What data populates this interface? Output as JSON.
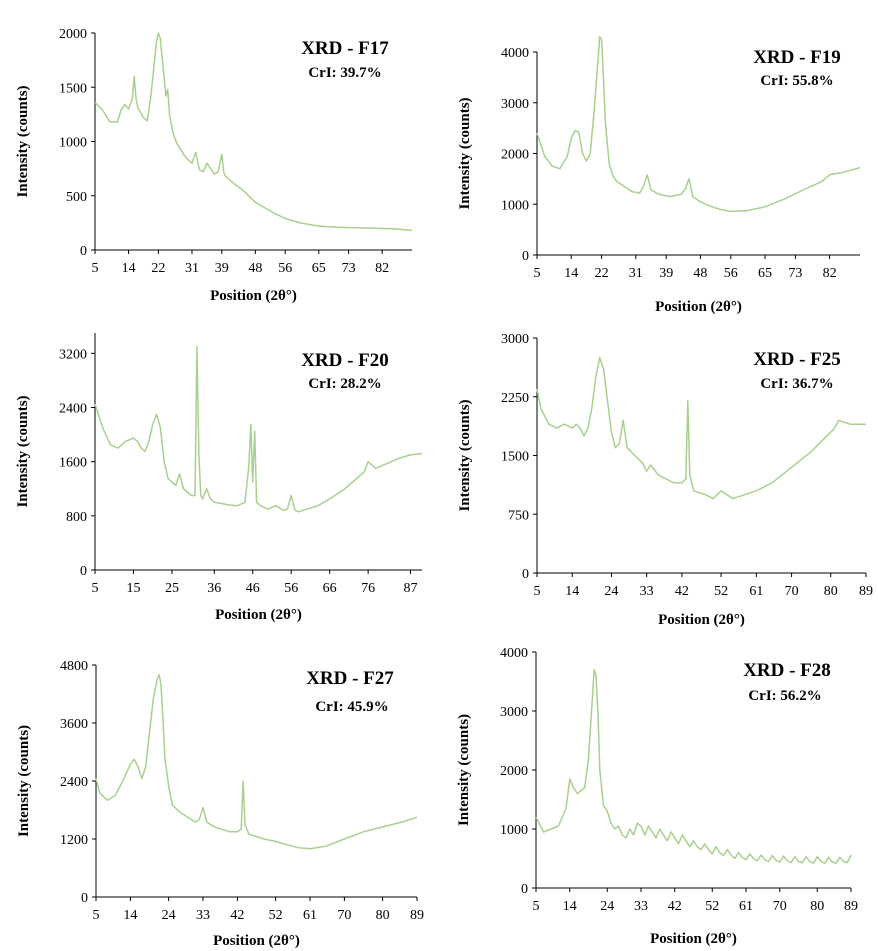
{
  "colors": {
    "series": "#a9d08e",
    "axis": "#000000"
  },
  "chart_data": [
    {
      "type": "line",
      "title": "XRD - F17",
      "subtitle": "CrI: 39.7%",
      "xlabel": "Position (2θ°)",
      "ylabel": "Intensity (counts)",
      "xlim": [
        5,
        90
      ],
      "ylim": [
        0,
        2000
      ],
      "x_ticks": [
        "5",
        "14",
        "22",
        "31",
        "39",
        "48",
        "56",
        "65",
        "73",
        "82"
      ],
      "y_ticks": [
        "0",
        "500",
        "1000",
        "1500",
        "2000"
      ],
      "grid": false,
      "series": [
        {
          "x": [
            5,
            7,
            9,
            11,
            12,
            13,
            14,
            15,
            15.5,
            16,
            16.5,
            17,
            18,
            19,
            20,
            21,
            21.5,
            22,
            22.5,
            23,
            23.5,
            24,
            24.5,
            25,
            26,
            27,
            29,
            30,
            31,
            32,
            33,
            34,
            35,
            36,
            37,
            38,
            39,
            39.5,
            40,
            42,
            45,
            48,
            50,
            53,
            56,
            60,
            65,
            70,
            75,
            80,
            85,
            90
          ],
          "y": [
            1360,
            1290,
            1180,
            1180,
            1290,
            1340,
            1300,
            1390,
            1600,
            1400,
            1310,
            1280,
            1220,
            1190,
            1420,
            1760,
            1920,
            2000,
            1950,
            1780,
            1600,
            1420,
            1480,
            1240,
            1070,
            980,
            870,
            830,
            800,
            900,
            740,
            720,
            800,
            750,
            700,
            720,
            880,
            720,
            680,
            620,
            540,
            440,
            400,
            340,
            290,
            250,
            220,
            210,
            205,
            200,
            195,
            180
          ]
        }
      ]
    },
    {
      "type": "line",
      "title": "XRD - F19",
      "subtitle": "CrI: 55.8%",
      "xlabel": "Position (2θ°)",
      "ylabel": "Intensity (counts)",
      "xlim": [
        5,
        90
      ],
      "ylim": [
        0,
        4000
      ],
      "x_ticks": [
        "5",
        "14",
        "22",
        "31",
        "39",
        "48",
        "56",
        "65",
        "73",
        "82"
      ],
      "y_ticks": [
        "0",
        "1000",
        "2000",
        "3000",
        "4000"
      ],
      "grid": false,
      "series": [
        {
          "x": [
            5,
            7,
            9,
            11,
            13,
            14,
            15,
            16,
            17,
            18,
            19,
            20,
            21,
            21.5,
            22,
            22.5,
            23,
            24,
            25,
            26,
            28,
            30,
            32,
            33,
            34,
            35,
            37,
            40,
            43,
            44,
            45,
            46,
            48,
            50,
            53,
            56,
            60,
            65,
            70,
            75,
            80,
            82,
            85,
            90
          ],
          "y": [
            2400,
            1950,
            1750,
            1700,
            1950,
            2300,
            2450,
            2420,
            2000,
            1850,
            2000,
            2800,
            3800,
            4300,
            4250,
            3500,
            2600,
            1800,
            1550,
            1450,
            1350,
            1250,
            1220,
            1350,
            1580,
            1280,
            1200,
            1150,
            1200,
            1300,
            1500,
            1150,
            1050,
            980,
            900,
            860,
            870,
            950,
            1100,
            1280,
            1450,
            1580,
            1620,
            1720
          ]
        }
      ]
    },
    {
      "type": "line",
      "title": "XRD - F20",
      "subtitle": "CrI: 28.2%",
      "xlabel": "Position (2θ°)",
      "ylabel": "Intensity (counts)",
      "xlim": [
        5,
        90
      ],
      "ylim": [
        0,
        3500
      ],
      "x_ticks": [
        "5",
        "15",
        "25",
        "36",
        "46",
        "56",
        "66",
        "76",
        "87"
      ],
      "y_ticks": [
        "0",
        "800",
        "1600",
        "2400",
        "3200"
      ],
      "grid": false,
      "series": [
        {
          "x": [
            5,
            7,
            9,
            11,
            13,
            15,
            16,
            17,
            18,
            19,
            20,
            21,
            22,
            23,
            24,
            26,
            27,
            28,
            29,
            30,
            31,
            31.5,
            32,
            32.5,
            33,
            34,
            35,
            36,
            38,
            40,
            42,
            44,
            45,
            45.5,
            46,
            46.5,
            47,
            48,
            50,
            52,
            54,
            55,
            56,
            57,
            58,
            60,
            63,
            66,
            70,
            73,
            75,
            76,
            78,
            80,
            82,
            84,
            87,
            90
          ],
          "y": [
            2450,
            2100,
            1850,
            1800,
            1900,
            1950,
            1900,
            1800,
            1750,
            1900,
            2150,
            2300,
            2100,
            1600,
            1350,
            1250,
            1420,
            1200,
            1150,
            1100,
            1100,
            3300,
            1700,
            1100,
            1050,
            1200,
            1050,
            1000,
            980,
            960,
            950,
            1000,
            1550,
            2150,
            1300,
            2050,
            1000,
            950,
            900,
            950,
            880,
            900,
            1100,
            880,
            860,
            900,
            950,
            1050,
            1200,
            1350,
            1450,
            1600,
            1500,
            1550,
            1600,
            1650,
            1700,
            1720
          ]
        }
      ]
    },
    {
      "type": "line",
      "title": "XRD - F25",
      "subtitle": "CrI: 36.7%",
      "xlabel": "Position (2θ°)",
      "ylabel": "Intensity (counts)",
      "xlim": [
        5,
        89
      ],
      "ylim": [
        0,
        3000
      ],
      "x_ticks": [
        "5",
        "14",
        "24",
        "33",
        "42",
        "52",
        "61",
        "70",
        "80",
        "89"
      ],
      "y_ticks": [
        "0",
        "750",
        "1500",
        "2250",
        "3000"
      ],
      "grid": false,
      "series": [
        {
          "x": [
            5,
            6,
            8,
            10,
            12,
            14,
            15,
            16,
            17,
            18,
            19,
            20,
            21,
            22,
            23,
            24,
            25,
            26,
            27,
            28,
            30,
            32,
            33,
            34,
            36,
            38,
            40,
            42,
            43,
            43.5,
            44,
            45,
            48,
            50,
            52,
            55,
            58,
            61,
            65,
            70,
            75,
            78,
            80,
            81,
            82,
            85,
            89
          ],
          "y": [
            2350,
            2100,
            1900,
            1850,
            1900,
            1850,
            1900,
            1850,
            1750,
            1850,
            2100,
            2500,
            2750,
            2600,
            2200,
            1800,
            1600,
            1650,
            1950,
            1600,
            1500,
            1400,
            1300,
            1380,
            1250,
            1200,
            1150,
            1150,
            1200,
            2200,
            1250,
            1050,
            1000,
            950,
            1050,
            950,
            1000,
            1050,
            1150,
            1350,
            1550,
            1700,
            1800,
            1850,
            1950,
            1900,
            1900
          ]
        }
      ]
    },
    {
      "type": "line",
      "title": "XRD - F27",
      "subtitle": "CrI: 45.9%",
      "xlabel": "Position (2θ°)",
      "ylabel": "Intensity (counts)",
      "xlim": [
        5,
        89
      ],
      "ylim": [
        0,
        4800
      ],
      "x_ticks": [
        "5",
        "14",
        "24",
        "33",
        "42",
        "52",
        "61",
        "70",
        "80",
        "89"
      ],
      "y_ticks": [
        "0",
        "1200",
        "2400",
        "3600",
        "4800"
      ],
      "grid": false,
      "series": [
        {
          "x": [
            5,
            6,
            8,
            10,
            12,
            14,
            15,
            16,
            17,
            18,
            19,
            20,
            21,
            21.5,
            22,
            22.5,
            23,
            24,
            25,
            27,
            29,
            31,
            32,
            33,
            34,
            36,
            38,
            40,
            42,
            43,
            43.5,
            44,
            45,
            47,
            49,
            52,
            55,
            58,
            61,
            65,
            70,
            75,
            80,
            85,
            89
          ],
          "y": [
            2450,
            2150,
            2000,
            2100,
            2400,
            2750,
            2850,
            2700,
            2450,
            2700,
            3400,
            4100,
            4500,
            4600,
            4400,
            3700,
            2900,
            2300,
            1900,
            1750,
            1650,
            1550,
            1600,
            1850,
            1550,
            1450,
            1400,
            1350,
            1350,
            1400,
            2400,
            1500,
            1300,
            1250,
            1200,
            1150,
            1080,
            1020,
            1000,
            1050,
            1200,
            1350,
            1450,
            1550,
            1650
          ]
        }
      ]
    },
    {
      "type": "line",
      "title": "XRD - F28",
      "subtitle": "CrI: 56.2%",
      "xlabel": "Position (2θ°)",
      "ylabel": "Intensity (counts)",
      "xlim": [
        5,
        89
      ],
      "ylim": [
        0,
        4000
      ],
      "x_ticks": [
        "5",
        "14",
        "24",
        "33",
        "42",
        "52",
        "61",
        "70",
        "80",
        "89"
      ],
      "y_ticks": [
        "0",
        "1000",
        "2000",
        "3000",
        "4000"
      ],
      "grid": false,
      "series": [
        {
          "x": [
            5,
            7,
            9,
            11,
            13,
            14,
            15,
            16,
            17,
            18,
            19,
            20,
            20.5,
            21,
            21.5,
            22,
            23,
            24,
            25,
            26,
            27,
            28,
            29,
            30,
            31,
            32,
            33,
            34,
            35,
            36,
            37,
            38,
            39,
            40,
            41,
            42,
            43,
            44,
            45,
            46,
            47,
            48,
            49,
            50,
            51,
            52,
            53,
            54,
            55,
            56,
            57,
            58,
            59,
            60,
            61,
            62,
            63,
            64,
            65,
            66,
            67,
            68,
            69,
            70,
            71,
            72,
            73,
            74,
            75,
            76,
            77,
            78,
            79,
            80,
            81,
            82,
            83,
            84,
            85,
            86,
            87,
            88,
            89
          ],
          "y": [
            1200,
            950,
            1000,
            1050,
            1350,
            1850,
            1700,
            1600,
            1650,
            1700,
            2200,
            3200,
            3700,
            3600,
            3000,
            2000,
            1400,
            1300,
            1100,
            1000,
            1050,
            900,
            850,
            1000,
            900,
            1100,
            1050,
            900,
            1050,
            950,
            850,
            1000,
            900,
            800,
            950,
            850,
            750,
            900,
            800,
            700,
            800,
            700,
            650,
            750,
            650,
            580,
            700,
            600,
            550,
            650,
            560,
            500,
            600,
            520,
            480,
            580,
            500,
            460,
            560,
            480,
            450,
            550,
            470,
            440,
            540,
            460,
            430,
            530,
            450,
            430,
            530,
            450,
            420,
            530,
            450,
            420,
            520,
            440,
            420,
            520,
            450,
            430,
            560
          ]
        }
      ]
    }
  ]
}
